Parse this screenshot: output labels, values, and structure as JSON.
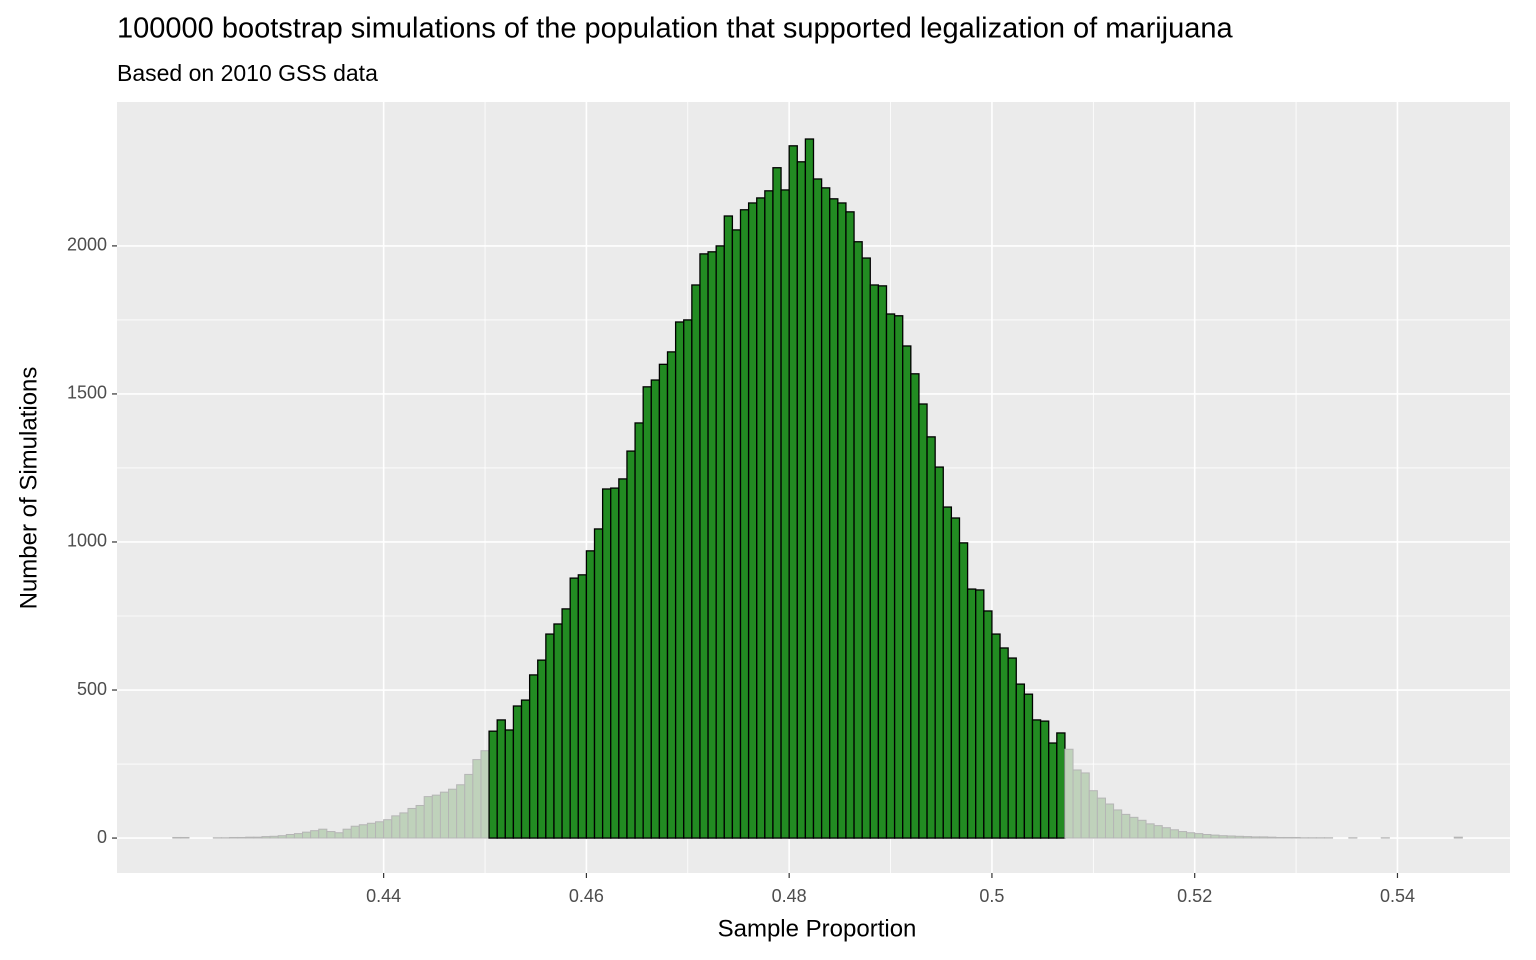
{
  "chart_data": {
    "type": "histogram",
    "title": "100000 bootstrap simulations of the population that supported legalization of marijuana",
    "subtitle": "Based on 2010 GSS data",
    "x_label": "Sample Proportion",
    "y_label": "Number of Simulations",
    "bins": [
      0.4192,
      0.42,
      0.4208,
      0.4216,
      0.4224,
      0.4232,
      0.424,
      0.4248,
      0.4256,
      0.4264,
      0.4272,
      0.428,
      0.4288,
      0.4296,
      0.4304,
      0.4312,
      0.432,
      0.4328,
      0.4336,
      0.4344,
      0.4352,
      0.436,
      0.4368,
      0.4376,
      0.4384,
      0.4392,
      0.44,
      0.4408,
      0.4416,
      0.4424,
      0.4432,
      0.444,
      0.4448,
      0.4456,
      0.4464,
      0.4472,
      0.448,
      0.4488,
      0.4496,
      0.4504,
      0.4512,
      0.452,
      0.4528,
      0.4536,
      0.4544,
      0.4552,
      0.456,
      0.4568,
      0.4576,
      0.4584,
      0.4592,
      0.46,
      0.4608,
      0.4616,
      0.4624,
      0.4632,
      0.464,
      0.4648,
      0.4656,
      0.4664,
      0.4672,
      0.468,
      0.4688,
      0.4696,
      0.4704,
      0.4712,
      0.472,
      0.4728,
      0.4736,
      0.4744,
      0.4752,
      0.476,
      0.4768,
      0.4776,
      0.4784,
      0.4792,
      0.48,
      0.4808,
      0.4816,
      0.4824,
      0.4832,
      0.484,
      0.4848,
      0.4856,
      0.4864,
      0.4872,
      0.488,
      0.4888,
      0.4896,
      0.4904,
      0.4912,
      0.492,
      0.4928,
      0.4936,
      0.4944,
      0.4952,
      0.496,
      0.4968,
      0.4976,
      0.4984,
      0.4992,
      0.5,
      0.5008,
      0.5016,
      0.5024,
      0.5032,
      0.504,
      0.5048,
      0.5056,
      0.5064,
      0.5072,
      0.508,
      0.5088,
      0.5096,
      0.5104,
      0.5112,
      0.512,
      0.5128,
      0.5136,
      0.5144,
      0.5152,
      0.516,
      0.5168,
      0.5176,
      0.5184,
      0.5192,
      0.52,
      0.5208,
      0.5216,
      0.5224,
      0.5232,
      0.524,
      0.5248,
      0.5256,
      0.5264,
      0.5272,
      0.528,
      0.5288,
      0.5296,
      0.5304,
      0.5312,
      0.532,
      0.5328,
      0.5336,
      0.5344,
      0.5352,
      0.536,
      0.5368,
      0.5376,
      0.5384,
      0.5392,
      0.54,
      0.5408,
      0.5416,
      0.5424,
      0.5432,
      0.544,
      0.5448,
      0.5456,
      0.5464
    ],
    "values": [
      2,
      2,
      0,
      0,
      0,
      1,
      1,
      2,
      2,
      3,
      3,
      5,
      6,
      8,
      12,
      15,
      20,
      25,
      30,
      22,
      18,
      30,
      40,
      45,
      50,
      55,
      62,
      75,
      85,
      100,
      110,
      140,
      145,
      155,
      165,
      180,
      215,
      265,
      295,
      361,
      399,
      365,
      446,
      466,
      551,
      601,
      689,
      723,
      774,
      878,
      889,
      970,
      1044,
      1179,
      1182,
      1213,
      1307,
      1402,
      1524,
      1547,
      1600,
      1642,
      1743,
      1750,
      1868,
      1973,
      1980,
      2000,
      2101,
      2054,
      2122,
      2145,
      2162,
      2186,
      2264,
      2189,
      2338,
      2284,
      2361,
      2226,
      2196,
      2159,
      2145,
      2115,
      2014,
      1959,
      1868,
      1865,
      1770,
      1764,
      1662,
      1568,
      1466,
      1355,
      1253,
      1118,
      1081,
      997,
      841,
      838,
      767,
      689,
      642,
      608,
      520,
      486,
      399,
      395,
      321,
      355,
      300,
      230,
      220,
      160,
      135,
      115,
      95,
      80,
      70,
      60,
      48,
      42,
      35,
      28,
      22,
      18,
      15,
      12,
      10,
      8,
      7,
      6,
      5,
      4,
      4,
      3,
      2,
      2,
      2,
      1,
      1,
      1,
      1,
      0,
      0,
      1,
      0,
      0,
      0,
      1,
      0,
      0,
      0,
      0,
      0,
      0,
      0,
      0,
      3
    ],
    "color": "#bfd2bb",
    "highlight": {
      "xlim": [
        0.4504,
        0.5072
      ],
      "color": "#228b22"
    },
    "xlim": [
      0.4137,
      0.5511
    ],
    "ylim": [
      -118,
      2486
    ],
    "xticks": [
      0.44,
      0.46,
      0.48,
      0.5,
      0.52,
      0.54
    ],
    "yticks": [
      0,
      500,
      1000,
      1500,
      2000
    ],
    "grid": true
  }
}
